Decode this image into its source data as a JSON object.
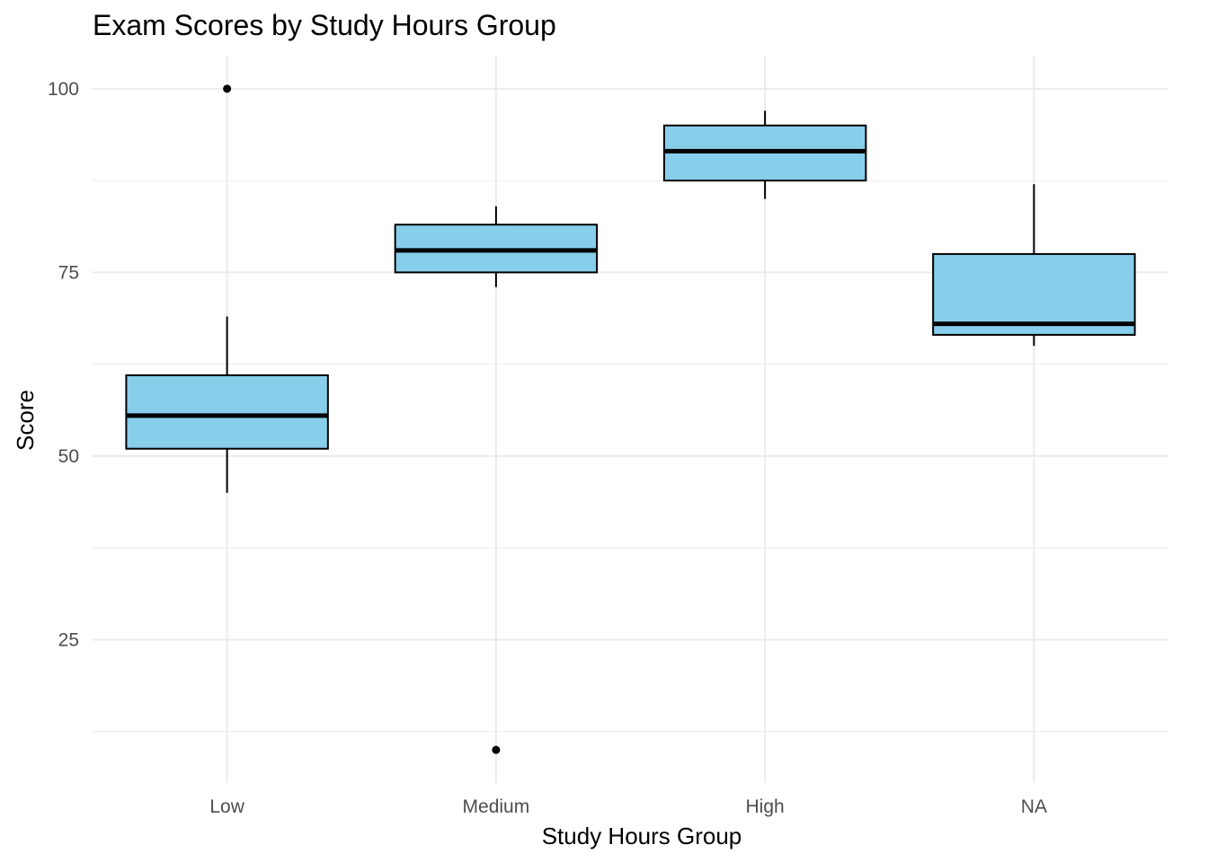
{
  "chart_data": {
    "type": "boxplot",
    "title": "Exam Scores by Study Hours Group",
    "xlabel": "Study Hours Group",
    "ylabel": "Score",
    "categories": [
      "Low",
      "Medium",
      "High",
      "NA"
    ],
    "ylim": [
      5.5,
      104.5
    ],
    "yticks": [
      25,
      50,
      75,
      100
    ],
    "grid": true,
    "box_fill": "#87CEEB",
    "box_stroke": "#000000",
    "grid_color": "#EBEBEB",
    "boxes": [
      {
        "category": "Low",
        "whisker_low": 45,
        "q1": 51,
        "median": 55.5,
        "q3": 61,
        "whisker_high": 69,
        "outliers": [
          100
        ]
      },
      {
        "category": "Medium",
        "whisker_low": 73,
        "q1": 75,
        "median": 78,
        "q3": 81.5,
        "whisker_high": 84,
        "outliers": [
          10
        ]
      },
      {
        "category": "High",
        "whisker_low": 85,
        "q1": 87.5,
        "median": 91.5,
        "q3": 95,
        "whisker_high": 97,
        "outliers": []
      },
      {
        "category": "NA",
        "whisker_low": 65,
        "q1": 66.5,
        "median": 68,
        "q3": 77.5,
        "whisker_high": 87,
        "outliers": []
      }
    ]
  }
}
